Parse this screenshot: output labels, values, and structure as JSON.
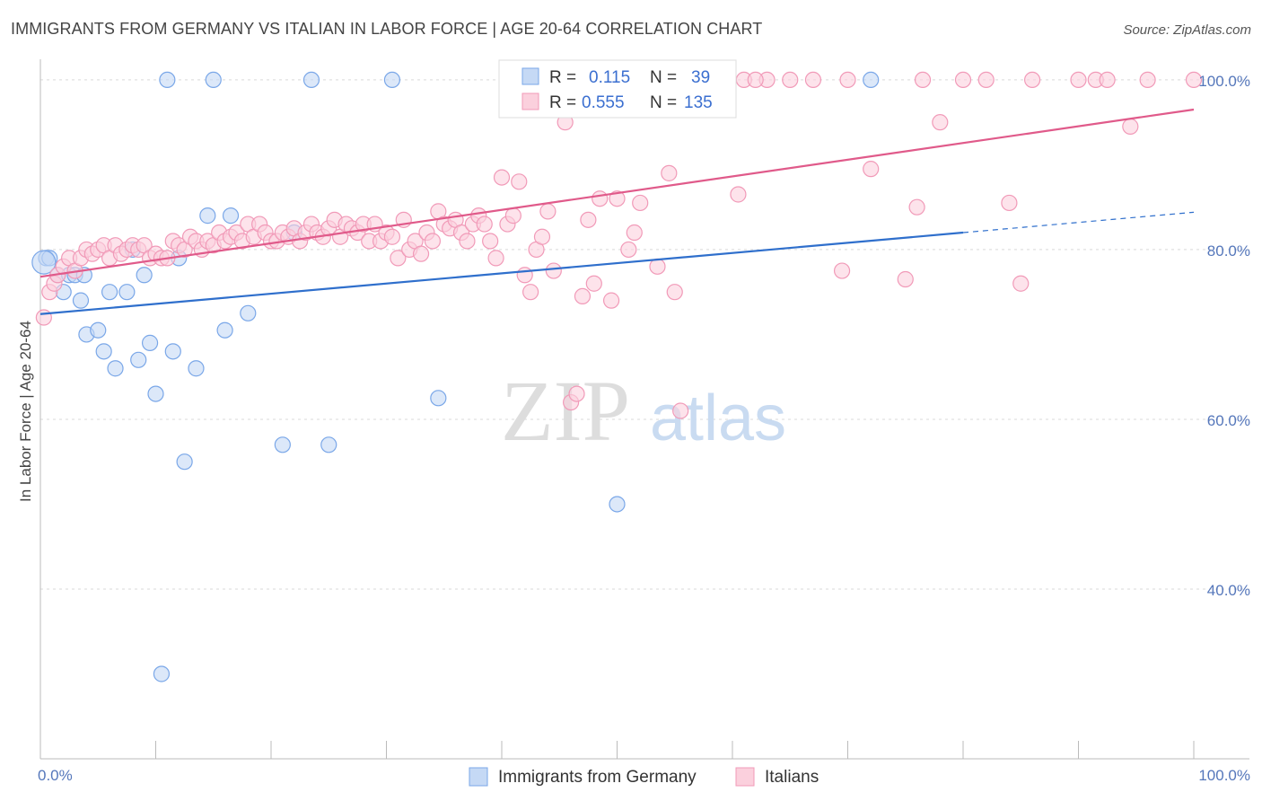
{
  "title": "IMMIGRANTS FROM GERMANY VS ITALIAN IN LABOR FORCE | AGE 20-64 CORRELATION CHART",
  "source": "Source: ZipAtlas.com",
  "watermark": {
    "zip": "ZIP",
    "atlas": "atlas"
  },
  "legend_top": [
    {
      "r_label": "R =",
      "r_value": "0.115",
      "n_label": "N =",
      "n_value": "39",
      "color": "#7aa7e8",
      "fill": "#c5d9f5"
    },
    {
      "r_label": "R =",
      "r_value": "0.555",
      "n_label": "N =",
      "n_value": "135",
      "color": "#f19ab8",
      "fill": "#fbd0dd"
    }
  ],
  "chart_data": {
    "type": "scatter",
    "title": "IMMIGRANTS FROM GERMANY VS ITALIAN IN LABOR FORCE | AGE 20-64 CORRELATION CHART",
    "xlabel": "",
    "ylabel": "In Labor Force | Age 20-64",
    "xlim": [
      0,
      100
    ],
    "ylim": [
      20,
      102
    ],
    "x_tick_labels": [
      "0.0%",
      "100.0%"
    ],
    "y_ticks": [
      40,
      60,
      80,
      100
    ],
    "y_tick_labels": [
      "40.0%",
      "60.0%",
      "80.0%",
      "100.0%"
    ],
    "grid": true,
    "legend_position": "top-center",
    "series": [
      {
        "name": "Immigrants from Germany",
        "color": "#7aa7e8",
        "fill": "#c5d9f5",
        "line_color": "#2f6fcc",
        "trend": {
          "x0": 0,
          "y0": 72.4,
          "x1": 80,
          "y1": 82.0,
          "dash_x1": 100,
          "dash_y1": 84.4
        },
        "points": [
          [
            0.5,
            79
          ],
          [
            0.8,
            79
          ],
          [
            1.5,
            77
          ],
          [
            2,
            75
          ],
          [
            2.5,
            77
          ],
          [
            3,
            77
          ],
          [
            3.5,
            74
          ],
          [
            3.8,
            77
          ],
          [
            4,
            70
          ],
          [
            5,
            70.5
          ],
          [
            5.5,
            68
          ],
          [
            6,
            75
          ],
          [
            6.5,
            66
          ],
          [
            7.5,
            75
          ],
          [
            8,
            80
          ],
          [
            8.5,
            67
          ],
          [
            9,
            77
          ],
          [
            9.5,
            69
          ],
          [
            10,
            63
          ],
          [
            10.5,
            30
          ],
          [
            11,
            100
          ],
          [
            11.5,
            68
          ],
          [
            12,
            79
          ],
          [
            12.5,
            55
          ],
          [
            13.5,
            66
          ],
          [
            14.5,
            84
          ],
          [
            15,
            100
          ],
          [
            16,
            70.5
          ],
          [
            16.5,
            84
          ],
          [
            18,
            72.5
          ],
          [
            21,
            57
          ],
          [
            22,
            82
          ],
          [
            23.5,
            100
          ],
          [
            25,
            57
          ],
          [
            30.5,
            100
          ],
          [
            34.5,
            62.5
          ],
          [
            50,
            50
          ],
          [
            72,
            100
          ],
          [
            0.3,
            78.5
          ]
        ]
      },
      {
        "name": "Italians",
        "color": "#f19ab8",
        "fill": "#fbd0dd",
        "line_color": "#e05a8a",
        "trend": {
          "x0": 0,
          "y0": 76.8,
          "x1": 100,
          "y1": 96.5
        },
        "points": [
          [
            0.3,
            72
          ],
          [
            0.8,
            75
          ],
          [
            1.2,
            76
          ],
          [
            1.5,
            77
          ],
          [
            2,
            78
          ],
          [
            2.5,
            79
          ],
          [
            3,
            77.5
          ],
          [
            3.5,
            79
          ],
          [
            4,
            80
          ],
          [
            4.5,
            79.5
          ],
          [
            5,
            80
          ],
          [
            5.5,
            80.5
          ],
          [
            6,
            79
          ],
          [
            6.5,
            80.5
          ],
          [
            7,
            79.5
          ],
          [
            7.5,
            80
          ],
          [
            8,
            80.5
          ],
          [
            8.5,
            80
          ],
          [
            9,
            80.5
          ],
          [
            9.5,
            79
          ],
          [
            10,
            79.5
          ],
          [
            10.5,
            79
          ],
          [
            11,
            79
          ],
          [
            11.5,
            81
          ],
          [
            12,
            80.5
          ],
          [
            12.5,
            80
          ],
          [
            13,
            81.5
          ],
          [
            13.5,
            81
          ],
          [
            14,
            80
          ],
          [
            14.5,
            81
          ],
          [
            15,
            80.5
          ],
          [
            15.5,
            82
          ],
          [
            16,
            81
          ],
          [
            16.5,
            81.5
          ],
          [
            17,
            82
          ],
          [
            17.5,
            81
          ],
          [
            18,
            83
          ],
          [
            18.5,
            81.5
          ],
          [
            19,
            83
          ],
          [
            19.5,
            82
          ],
          [
            20,
            81
          ],
          [
            20.5,
            81
          ],
          [
            21,
            82
          ],
          [
            21.5,
            81.5
          ],
          [
            22,
            82.5
          ],
          [
            22.5,
            81
          ],
          [
            23,
            82
          ],
          [
            23.5,
            83
          ],
          [
            24,
            82
          ],
          [
            24.5,
            81.5
          ],
          [
            25,
            82.5
          ],
          [
            25.5,
            83.5
          ],
          [
            26,
            81.5
          ],
          [
            26.5,
            83
          ],
          [
            27,
            82.5
          ],
          [
            27.5,
            82
          ],
          [
            28,
            83
          ],
          [
            28.5,
            81
          ],
          [
            29,
            83
          ],
          [
            29.5,
            81
          ],
          [
            30,
            82
          ],
          [
            30.5,
            81.5
          ],
          [
            31,
            79
          ],
          [
            31.5,
            83.5
          ],
          [
            32,
            80
          ],
          [
            32.5,
            81
          ],
          [
            33,
            79.5
          ],
          [
            33.5,
            82
          ],
          [
            34,
            81
          ],
          [
            34.5,
            84.5
          ],
          [
            35,
            83
          ],
          [
            35.5,
            82.5
          ],
          [
            36,
            83.5
          ],
          [
            36.5,
            82
          ],
          [
            37,
            81
          ],
          [
            37.5,
            83
          ],
          [
            38,
            84
          ],
          [
            38.5,
            83
          ],
          [
            39,
            81
          ],
          [
            39.5,
            79
          ],
          [
            40,
            88.5
          ],
          [
            40.5,
            83
          ],
          [
            41,
            84
          ],
          [
            41.5,
            88
          ],
          [
            42,
            77
          ],
          [
            42.5,
            75
          ],
          [
            43,
            80
          ],
          [
            43.5,
            81.5
          ],
          [
            44,
            84.5
          ],
          [
            44.5,
            77.5
          ],
          [
            45,
            100
          ],
          [
            45.5,
            95
          ],
          [
            46,
            62
          ],
          [
            46.5,
            63
          ],
          [
            47,
            74.5
          ],
          [
            47.5,
            83.5
          ],
          [
            48,
            76
          ],
          [
            48.5,
            86
          ],
          [
            49,
            100
          ],
          [
            49.5,
            74
          ],
          [
            50,
            86
          ],
          [
            50.5,
            100
          ],
          [
            51,
            80
          ],
          [
            51.5,
            82
          ],
          [
            52,
            85.5
          ],
          [
            52.5,
            100
          ],
          [
            53,
            100
          ],
          [
            53.5,
            78
          ],
          [
            54,
            100
          ],
          [
            54.5,
            89
          ],
          [
            55,
            75
          ],
          [
            55.5,
            61
          ],
          [
            56,
            100
          ],
          [
            58,
            100
          ],
          [
            60.5,
            86.5
          ],
          [
            61,
            100
          ],
          [
            63,
            100
          ],
          [
            67,
            100
          ],
          [
            69.5,
            77.5
          ],
          [
            70,
            100
          ],
          [
            72,
            89.5
          ],
          [
            75,
            76.5
          ],
          [
            76,
            85
          ],
          [
            76.5,
            100
          ],
          [
            78,
            95
          ],
          [
            80,
            100
          ],
          [
            82,
            100
          ],
          [
            84,
            85.5
          ],
          [
            85,
            76
          ],
          [
            86,
            100
          ],
          [
            90,
            100
          ],
          [
            91.5,
            100
          ],
          [
            92.5,
            100
          ],
          [
            94.5,
            94.5
          ],
          [
            96,
            100
          ],
          [
            100,
            100
          ],
          [
            62,
            100
          ],
          [
            57,
            100
          ],
          [
            44,
            100
          ],
          [
            65,
            100
          ]
        ]
      }
    ]
  },
  "bottom_legend": [
    {
      "label": "Immigrants from Germany",
      "color": "#7aa7e8",
      "fill": "#c5d9f5"
    },
    {
      "label": "Italians",
      "color": "#f19ab8",
      "fill": "#fbd0dd"
    }
  ]
}
